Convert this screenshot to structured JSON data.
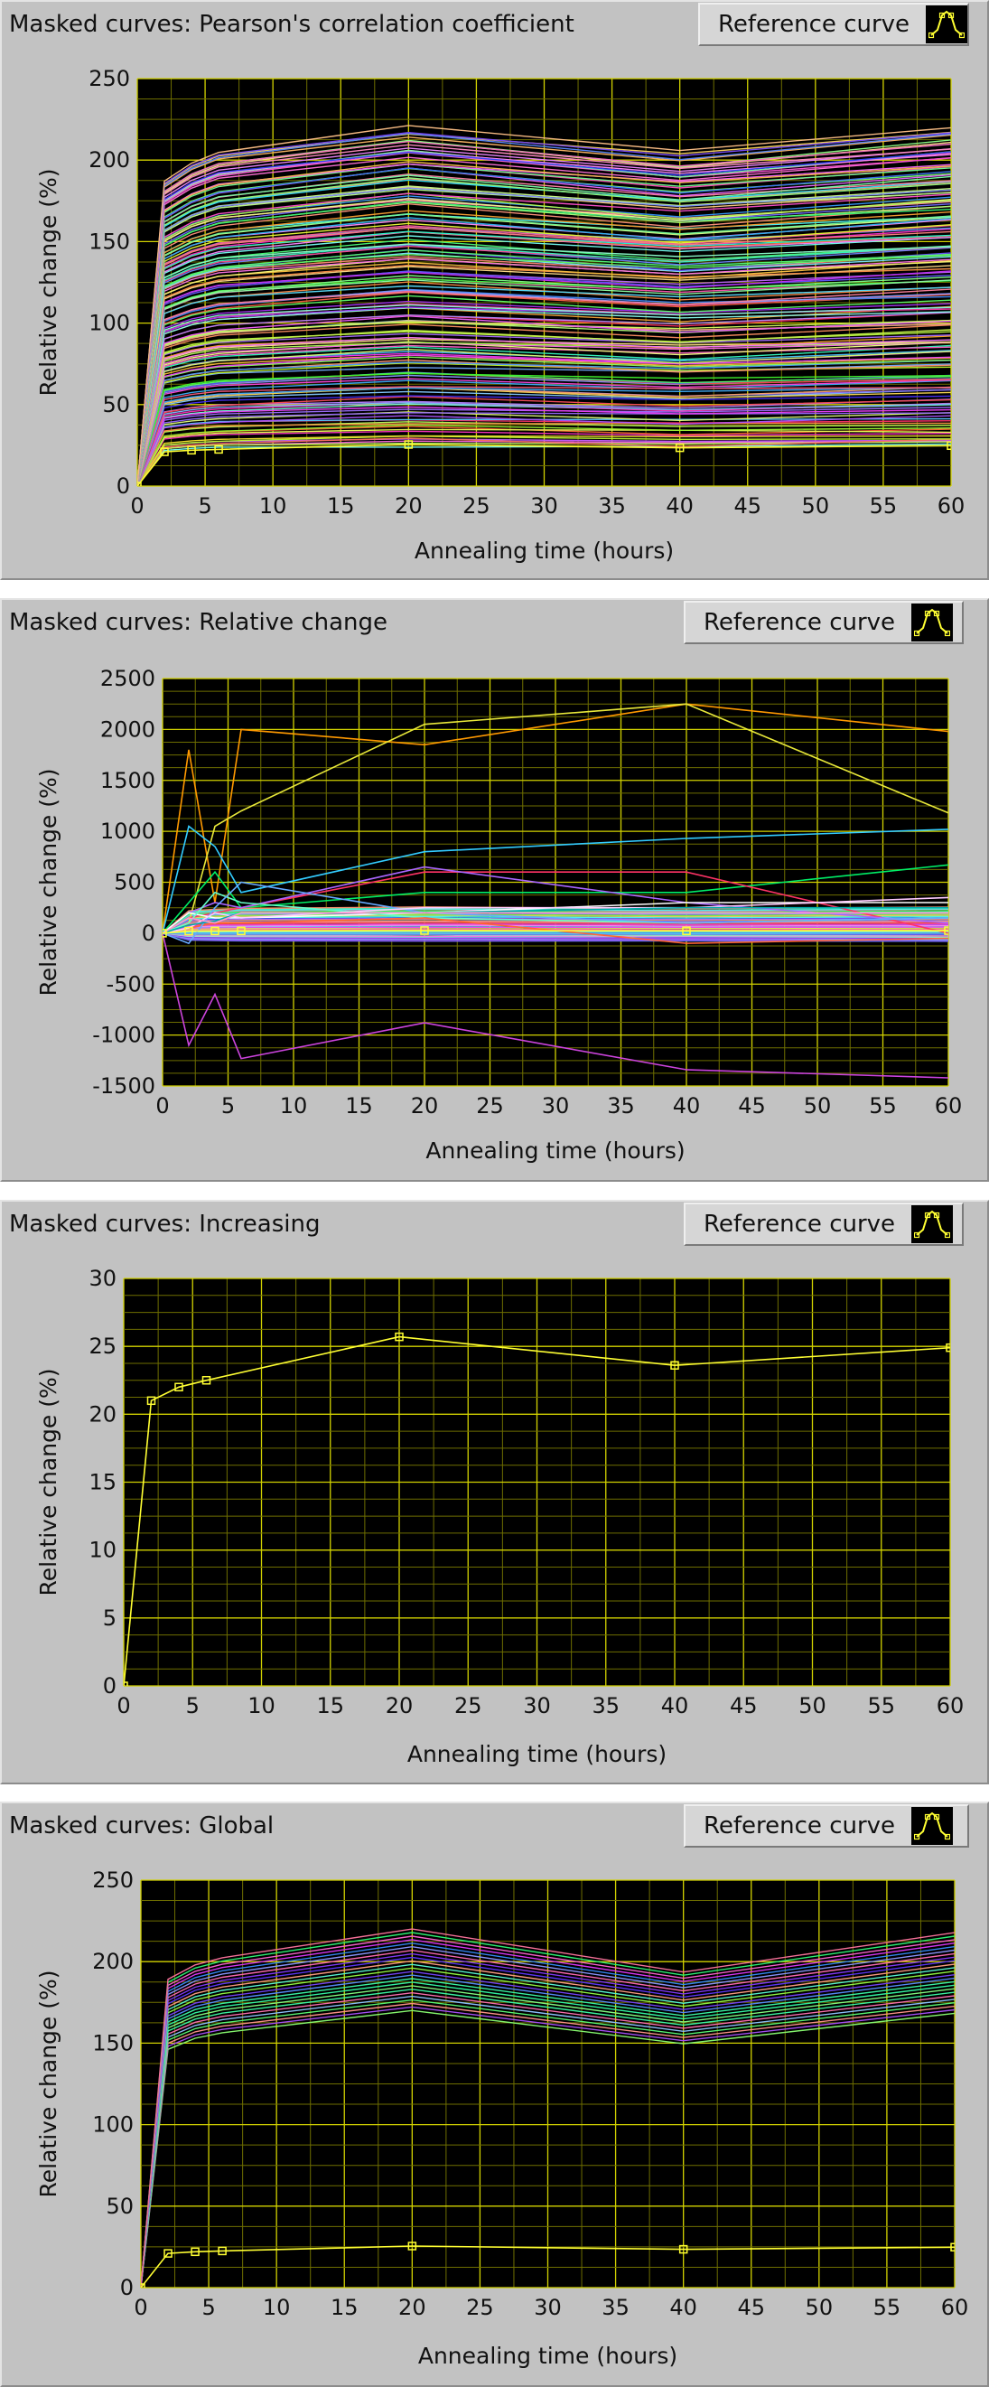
{
  "reference_button_label": "Reference curve",
  "icons": {
    "reference": "reference-curve-icon"
  },
  "colors": {
    "plot_bg": "#000000",
    "grid": "#c8c800",
    "reference_curve": "#ffff33"
  },
  "chart_data": [
    {
      "type": "line",
      "title": "Masked curves: Pearson's correlation coefficient",
      "xlabel": "Annealing time (hours)",
      "ylabel": "Relative change (%)",
      "xlim": [
        0,
        60
      ],
      "ylim": [
        0,
        250
      ],
      "x_ticks": [
        0,
        5,
        10,
        15,
        20,
        25,
        30,
        35,
        40,
        45,
        50,
        55,
        60
      ],
      "y_ticks": [
        0,
        50,
        100,
        150,
        200,
        250
      ],
      "grid": "on",
      "x": [
        0,
        2,
        4,
        6,
        20,
        40,
        60
      ],
      "reference_series": {
        "values": [
          0,
          21,
          22,
          22.5,
          25.5,
          23.5,
          24.8
        ],
        "color": "#ffff33"
      },
      "bundle": {
        "count": 160,
        "spread_min": 25,
        "spread_max": 220,
        "shape": "rise-to-plateau",
        "colors": "multicolor"
      }
    },
    {
      "type": "line",
      "title": "Masked curves: Relative change",
      "xlabel": "Annealing time (hours)",
      "ylabel": "Relative change (%)",
      "xlim": [
        0,
        60
      ],
      "ylim": [
        -1500,
        2500
      ],
      "x_ticks": [
        0,
        5,
        10,
        15,
        20,
        25,
        30,
        35,
        40,
        45,
        50,
        55,
        60
      ],
      "y_ticks": [
        -1500,
        -1000,
        -500,
        0,
        500,
        1000,
        1500,
        2000,
        2500
      ],
      "grid": "on",
      "x": [
        0,
        2,
        4,
        6,
        20,
        40,
        60
      ],
      "reference_series": {
        "values": [
          0,
          21,
          22,
          22.5,
          25.5,
          23.5,
          24.8
        ],
        "color": "#ffff33"
      },
      "series": [
        {
          "color": "#ff9900",
          "values": [
            0,
            1800,
            300,
            2000,
            1850,
            2250,
            1980
          ]
        },
        {
          "color": "#e8e83a",
          "values": [
            0,
            100,
            1050,
            1200,
            2050,
            2250,
            1180
          ]
        },
        {
          "color": "#cc44dd",
          "values": [
            0,
            -1100,
            -600,
            -1230,
            -880,
            -1340,
            -1420
          ]
        },
        {
          "color": "#33ccff",
          "values": [
            0,
            1050,
            850,
            400,
            800,
            930,
            1020
          ]
        },
        {
          "color": "#00ee66",
          "values": [
            0,
            300,
            600,
            250,
            400,
            400,
            670
          ]
        },
        {
          "color": "#ff3366",
          "values": [
            0,
            150,
            200,
            250,
            600,
            600,
            0
          ]
        },
        {
          "color": "#aa66ff",
          "values": [
            0,
            200,
            300,
            250,
            650,
            300,
            100
          ]
        },
        {
          "color": "#ffffff",
          "values": [
            0,
            200,
            150,
            150,
            200,
            300,
            300
          ]
        },
        {
          "color": "#66ffcc",
          "values": [
            0,
            100,
            400,
            300,
            150,
            100,
            150
          ]
        },
        {
          "color": "#ff6633",
          "values": [
            0,
            50,
            100,
            100,
            150,
            -100,
            -50
          ]
        },
        {
          "color": "#66aaff",
          "values": [
            0,
            -100,
            250,
            500,
            200,
            100,
            150
          ]
        },
        {
          "color": "#ffccff",
          "values": [
            0,
            50,
            200,
            150,
            250,
            250,
            350
          ]
        },
        {
          "color": "#00aaaa",
          "values": [
            0,
            80,
            120,
            200,
            200,
            250,
            250
          ]
        },
        {
          "color": "#ff99cc",
          "values": [
            0,
            150,
            100,
            200,
            200,
            200,
            200
          ]
        }
      ],
      "bundle": {
        "count": 40,
        "spread_min": -80,
        "spread_max": 260,
        "shape": "rise-to-plateau",
        "colors": "multicolor"
      }
    },
    {
      "type": "line",
      "title": "Masked curves: Increasing",
      "xlabel": "Annealing time (hours)",
      "ylabel": "Relative change (%)",
      "xlim": [
        0,
        60
      ],
      "ylim": [
        0,
        30
      ],
      "x_ticks": [
        0,
        5,
        10,
        15,
        20,
        25,
        30,
        35,
        40,
        45,
        50,
        55,
        60
      ],
      "y_ticks": [
        0,
        5,
        10,
        15,
        20,
        25,
        30
      ],
      "grid": "on",
      "x": [
        0,
        2,
        4,
        6,
        20,
        40,
        60
      ],
      "reference_series": {
        "values": [
          0,
          21,
          22,
          22.5,
          25.7,
          23.6,
          24.9
        ],
        "color": "#ffff33"
      },
      "series": []
    },
    {
      "type": "line",
      "title": "Masked curves: Global",
      "xlabel": "Annealing time (hours)",
      "ylabel": "Relative change (%)",
      "xlim": [
        0,
        60
      ],
      "ylim": [
        0,
        250
      ],
      "x_ticks": [
        0,
        5,
        10,
        15,
        20,
        25,
        30,
        35,
        40,
        45,
        50,
        55,
        60
      ],
      "y_ticks": [
        0,
        50,
        100,
        150,
        200,
        250
      ],
      "grid": "on",
      "x": [
        0,
        2,
        4,
        6,
        20,
        40,
        60
      ],
      "reference_series": {
        "values": [
          0,
          21,
          22,
          22.5,
          25.5,
          23.5,
          24.8
        ],
        "color": "#ffff33"
      },
      "bundle": {
        "count": 24,
        "spread_min": 170,
        "spread_max": 220,
        "shape": "global",
        "colors": "multicolor"
      }
    }
  ]
}
